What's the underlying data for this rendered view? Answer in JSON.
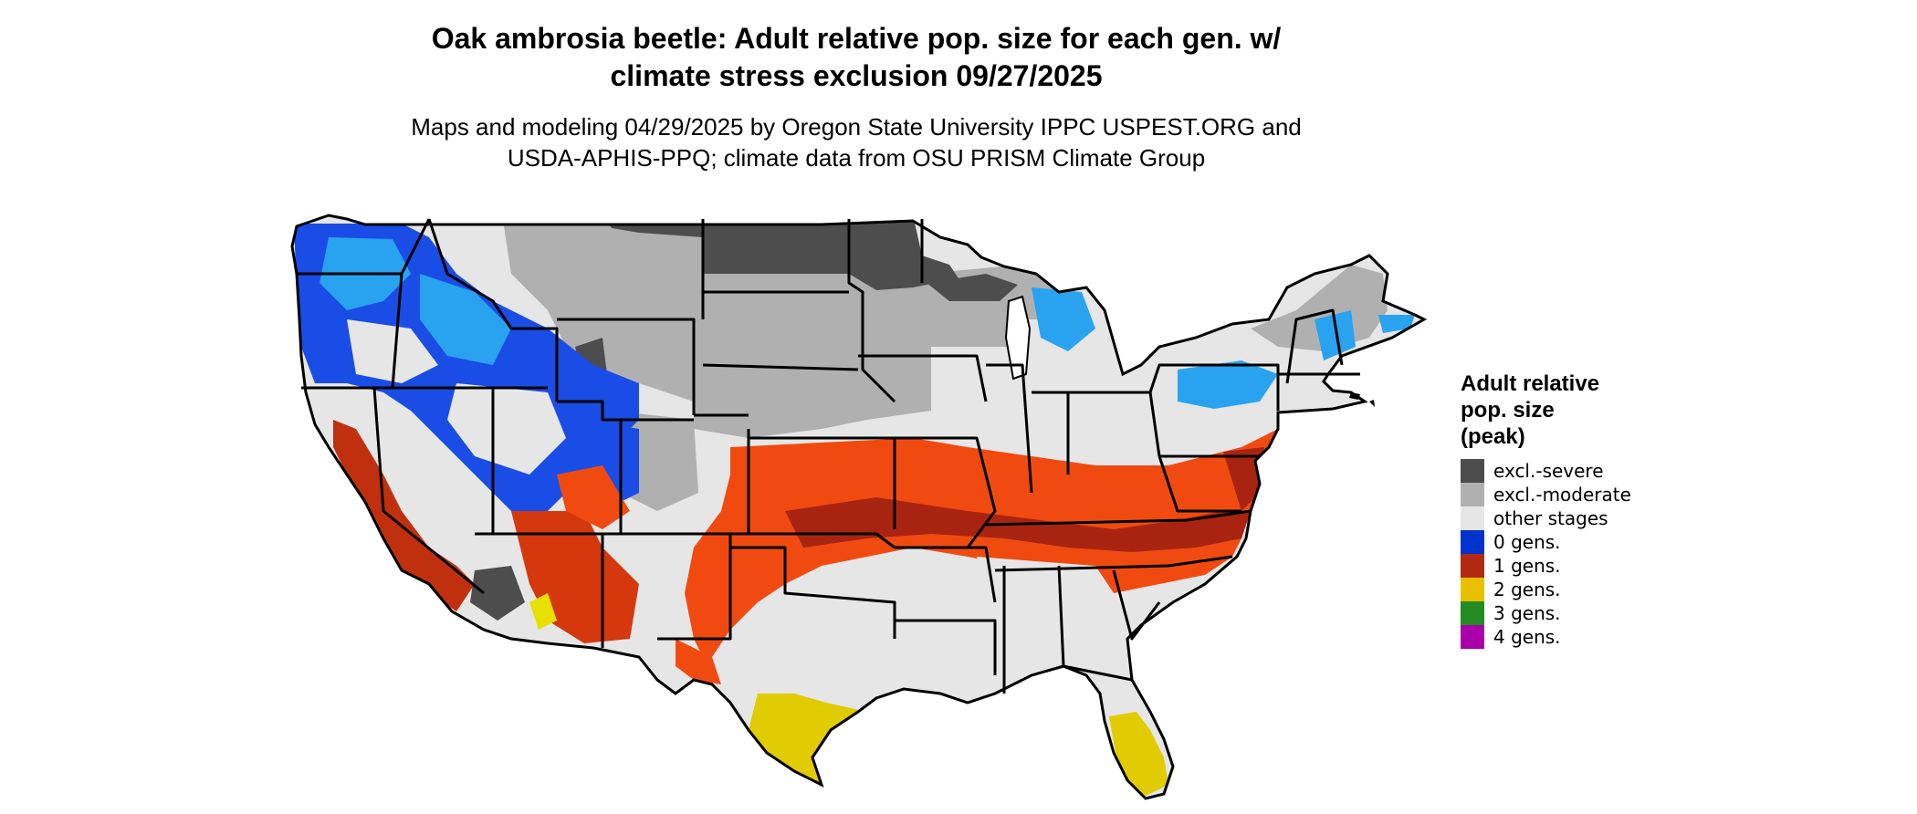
{
  "title": {
    "line1": "Oak ambrosia beetle: Adult relative pop. size for each gen. w/",
    "line2": "climate stress exclusion 09/27/2025"
  },
  "subtitle": {
    "line1": "Maps and modeling 04/29/2025 by Oregon State University IPPC USPEST.ORG and",
    "line2": "USDA-APHIS-PPQ; climate data from OSU PRISM Climate Group"
  },
  "legend": {
    "title_line1": "Adult relative",
    "title_line2": "pop. size",
    "title_line3": "(peak)",
    "items": [
      {
        "label": "excl.-severe",
        "color": "#4d4d4d"
      },
      {
        "label": "excl.-moderate",
        "color": "#b0b0b0"
      },
      {
        "label": "other stages",
        "color": "#e6e6e6"
      },
      {
        "label": "0 gens.",
        "color": "#0033cc"
      },
      {
        "label": "1 gens.",
        "color": "#b22810"
      },
      {
        "label": "2 gens.",
        "color": "#e8c000"
      },
      {
        "label": "3 gens.",
        "color": "#228b22"
      },
      {
        "label": "4 gens.",
        "color": "#aa00aa"
      }
    ]
  },
  "map": {
    "region": "Contiguous United States",
    "accent_colors": {
      "severe": "#4d4d4d",
      "moderate": "#b0b0b0",
      "other": "#e6e6e6",
      "cold_blue": "#1a4de6",
      "light_blue": "#29a3f0",
      "red": "#c0300f",
      "orange": "#f04a10",
      "yellow": "#e0cc00",
      "border": "#000000"
    }
  }
}
